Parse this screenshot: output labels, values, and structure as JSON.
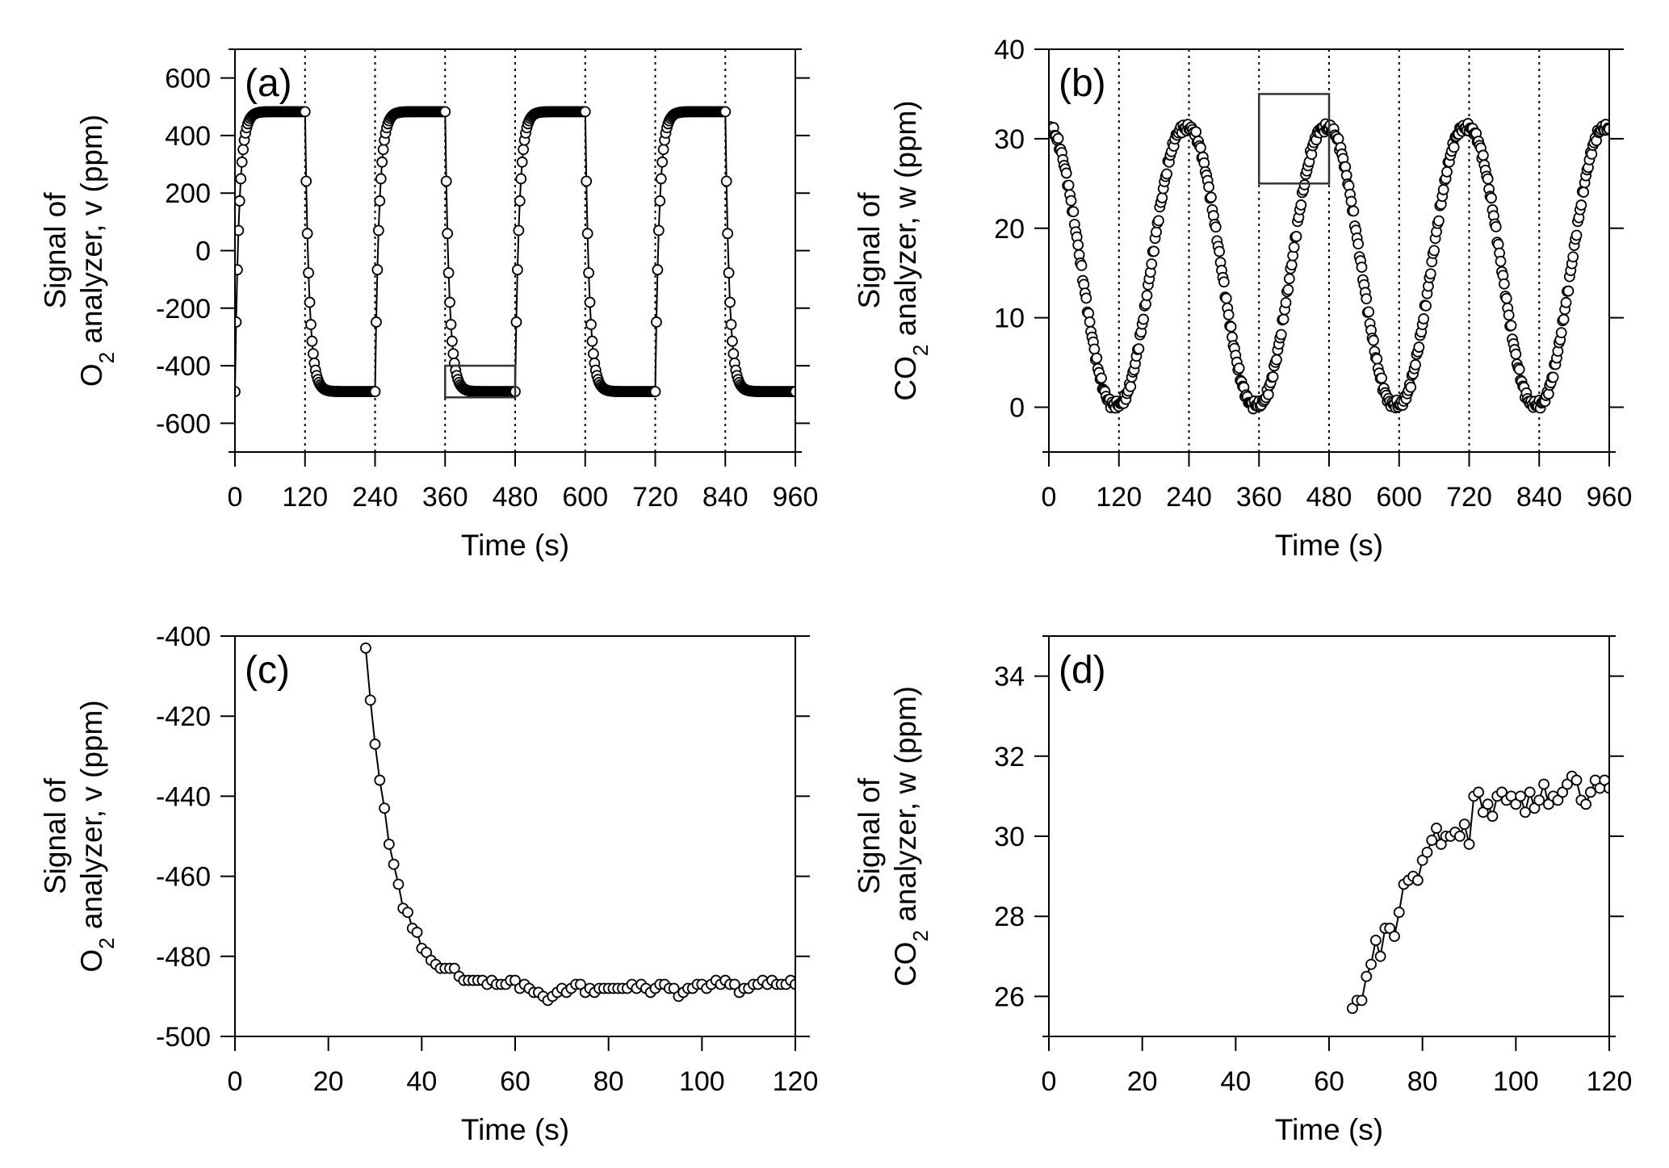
{
  "chart_data": [
    {
      "type": "scatter",
      "panel_label": "(a)",
      "ylabel_line1": "Signal of",
      "ylabel_line2_main": "O",
      "ylabel_line2_sub": "2",
      "ylabel_line2_rest": " analyzer, v (ppm)",
      "xlabel": "Time (s)",
      "xlim": [
        0,
        960
      ],
      "ylim": [
        -700,
        700
      ],
      "xticks": [
        0,
        120,
        240,
        360,
        480,
        600,
        720,
        840,
        960
      ],
      "yticks": [
        -600,
        -400,
        -200,
        0,
        200,
        400,
        600
      ],
      "vlines": [
        120,
        240,
        360,
        480,
        600,
        720,
        840
      ],
      "zoom_box": {
        "x": [
          360,
          480
        ],
        "y": [
          -510,
          -400
        ]
      },
      "line": true,
      "series": [
        {
          "shape": "square",
          "period": 240,
          "low": -490,
          "high": 483,
          "tau": 7,
          "start_phase": "rising",
          "dt": 2
        }
      ]
    },
    {
      "type": "scatter",
      "panel_label": "(b)",
      "ylabel_line1": "Signal of",
      "ylabel_line2_main": "CO",
      "ylabel_line2_sub": "2",
      "ylabel_line2_rest": " analyzer, w (ppm)",
      "xlabel": "Time (s)",
      "xlim": [
        0,
        960
      ],
      "ylim": [
        -5,
        40
      ],
      "xticks": [
        0,
        120,
        240,
        360,
        480,
        600,
        720,
        840,
        960
      ],
      "yticks": [
        0,
        10,
        20,
        30,
        40
      ],
      "vlines": [
        120,
        240,
        360,
        480,
        600,
        720,
        840
      ],
      "zoom_box": {
        "x": [
          360,
          480
        ],
        "y": [
          25,
          35
        ]
      },
      "line": false,
      "series": [
        {
          "shape": "wave",
          "period": 240,
          "low": 0.3,
          "high": 31.2,
          "start_phase": "falling",
          "dt": 2
        }
      ]
    },
    {
      "type": "scatter",
      "panel_label": "(c)",
      "ylabel_line1": "Signal of",
      "ylabel_line2_main": "O",
      "ylabel_line2_sub": "2",
      "ylabel_line2_rest": " analyzer, v (ppm)",
      "xlabel": "Time (s)",
      "xlim": [
        0,
        120
      ],
      "ylim": [
        -500,
        -400
      ],
      "xticks": [
        0,
        20,
        40,
        60,
        80,
        100,
        120
      ],
      "yticks": [
        -500,
        -480,
        -460,
        -440,
        -420,
        -400
      ],
      "line": true,
      "series": [
        {
          "shape": "points",
          "x": [
            28,
            29,
            30,
            31,
            32,
            33,
            34,
            35,
            36,
            37,
            38,
            39,
            40,
            41,
            42,
            43,
            44,
            45,
            46,
            47,
            48,
            49,
            50,
            51,
            52,
            53,
            54,
            55,
            56,
            57,
            58,
            59,
            60,
            61,
            62,
            63,
            64,
            65,
            66,
            67,
            68,
            69,
            70,
            71,
            72,
            73,
            74,
            75,
            76,
            77,
            78,
            79,
            80,
            81,
            82,
            83,
            84,
            85,
            86,
            87,
            88,
            89,
            90,
            91,
            92,
            93,
            94,
            95,
            96,
            97,
            98,
            99,
            100,
            101,
            102,
            103,
            104,
            105,
            106,
            107,
            108,
            109,
            110,
            111,
            112,
            113,
            114,
            115,
            116,
            117,
            118,
            119,
            120
          ],
          "y": [
            -403,
            -416,
            -427,
            -436,
            -443,
            -452,
            -457,
            -462,
            -468,
            -469,
            -473,
            -474,
            -478,
            -479,
            -481,
            -482,
            -483,
            -483,
            -483,
            -483,
            -485,
            -486,
            -486,
            -486,
            -486,
            -486,
            -487,
            -486,
            -487,
            -487,
            -487,
            -486,
            -486,
            -488,
            -487,
            -488,
            -489,
            -489,
            -490,
            -491,
            -490,
            -489,
            -488,
            -489,
            -488,
            -487,
            -487,
            -489,
            -488,
            -489,
            -488,
            -488,
            -488,
            -488,
            -488,
            -488,
            -488,
            -487,
            -488,
            -487,
            -488,
            -489,
            -488,
            -487,
            -487,
            -488,
            -488,
            -490,
            -489,
            -488,
            -488,
            -487,
            -487,
            -488,
            -487,
            -486,
            -487,
            -486,
            -487,
            -487,
            -489,
            -488,
            -488,
            -487,
            -487,
            -486,
            -487,
            -486,
            -487,
            -487,
            -487,
            -486,
            -487
          ]
        }
      ]
    },
    {
      "type": "scatter",
      "panel_label": "(d)",
      "ylabel_line1": "Signal of",
      "ylabel_line2_main": "CO",
      "ylabel_line2_sub": "2",
      "ylabel_line2_rest": " analyzer, w (ppm)",
      "xlabel": "Time (s)",
      "xlim": [
        0,
        120
      ],
      "ylim": [
        25,
        35
      ],
      "xticks": [
        0,
        20,
        40,
        60,
        80,
        100,
        120
      ],
      "yticks": [
        26,
        28,
        30,
        32,
        34
      ],
      "line": true,
      "series": [
        {
          "shape": "points",
          "x": [
            65,
            66,
            67,
            68,
            69,
            70,
            71,
            72,
            73,
            74,
            75,
            76,
            77,
            78,
            79,
            80,
            81,
            82,
            83,
            84,
            85,
            86,
            87,
            88,
            89,
            90,
            91,
            92,
            93,
            94,
            95,
            96,
            97,
            98,
            99,
            100,
            101,
            102,
            103,
            104,
            105,
            106,
            107,
            108,
            109,
            110,
            111,
            112,
            113,
            114,
            115,
            116,
            117,
            118,
            119,
            120
          ],
          "y": [
            25.7,
            25.9,
            25.9,
            26.5,
            26.8,
            27.4,
            27.0,
            27.7,
            27.7,
            27.5,
            28.1,
            28.8,
            28.9,
            29.0,
            28.9,
            29.4,
            29.6,
            29.9,
            30.2,
            29.8,
            30.0,
            30.0,
            30.1,
            30.0,
            30.3,
            29.8,
            31.0,
            31.1,
            30.6,
            30.8,
            30.5,
            31.0,
            31.1,
            30.9,
            31.0,
            30.8,
            31.0,
            30.6,
            31.1,
            30.7,
            30.9,
            31.3,
            30.8,
            31.0,
            30.9,
            31.1,
            31.3,
            31.5,
            31.4,
            30.9,
            30.8,
            31.1,
            31.4,
            31.2,
            31.4,
            31.2
          ]
        }
      ]
    }
  ]
}
